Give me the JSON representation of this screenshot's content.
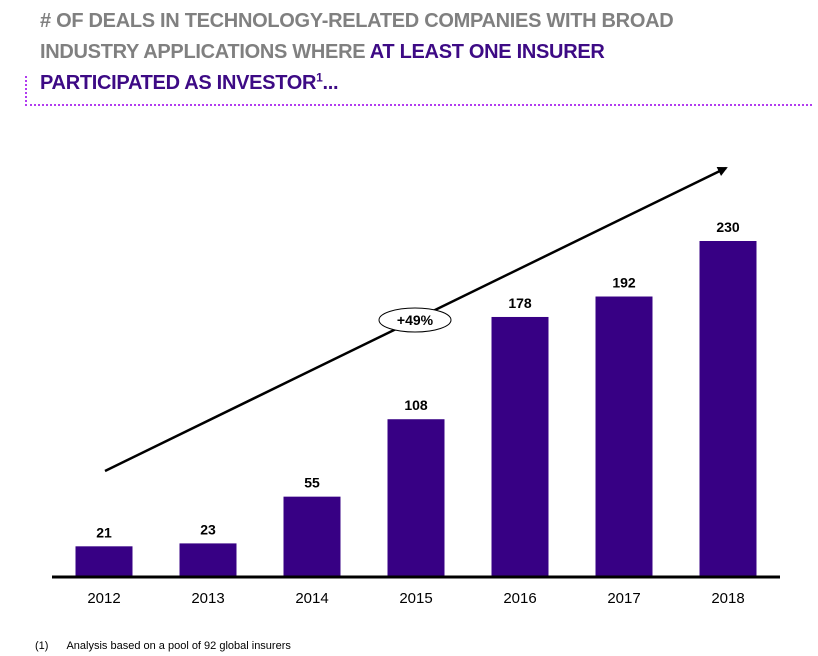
{
  "title": {
    "part1": "# OF DEALS IN TECHNOLOGY-RELATED COMPANIES WITH BROAD INDUSTRY APPLICATIONS WHERE ",
    "part2_highlight": "AT LEAST ONE INSURER PARTICIPATED AS INVESTOR",
    "superscript": "1",
    "ellipsis": "..."
  },
  "chart_data": {
    "type": "bar",
    "categories": [
      "2012",
      "2013",
      "2014",
      "2015",
      "2016",
      "2017",
      "2018"
    ],
    "values": [
      21,
      23,
      55,
      108,
      178,
      192,
      230
    ],
    "data_labels": [
      "21",
      "23",
      "55",
      "108",
      "178",
      "192",
      "230"
    ],
    "annotation": "+49%",
    "xlabel": "",
    "ylabel": "",
    "ylim": [
      0,
      230
    ],
    "bar_color": "#370084",
    "grid": false
  },
  "footnote": {
    "marker": "(1)",
    "text": "Analysis based on a pool of 92 global insurers"
  }
}
